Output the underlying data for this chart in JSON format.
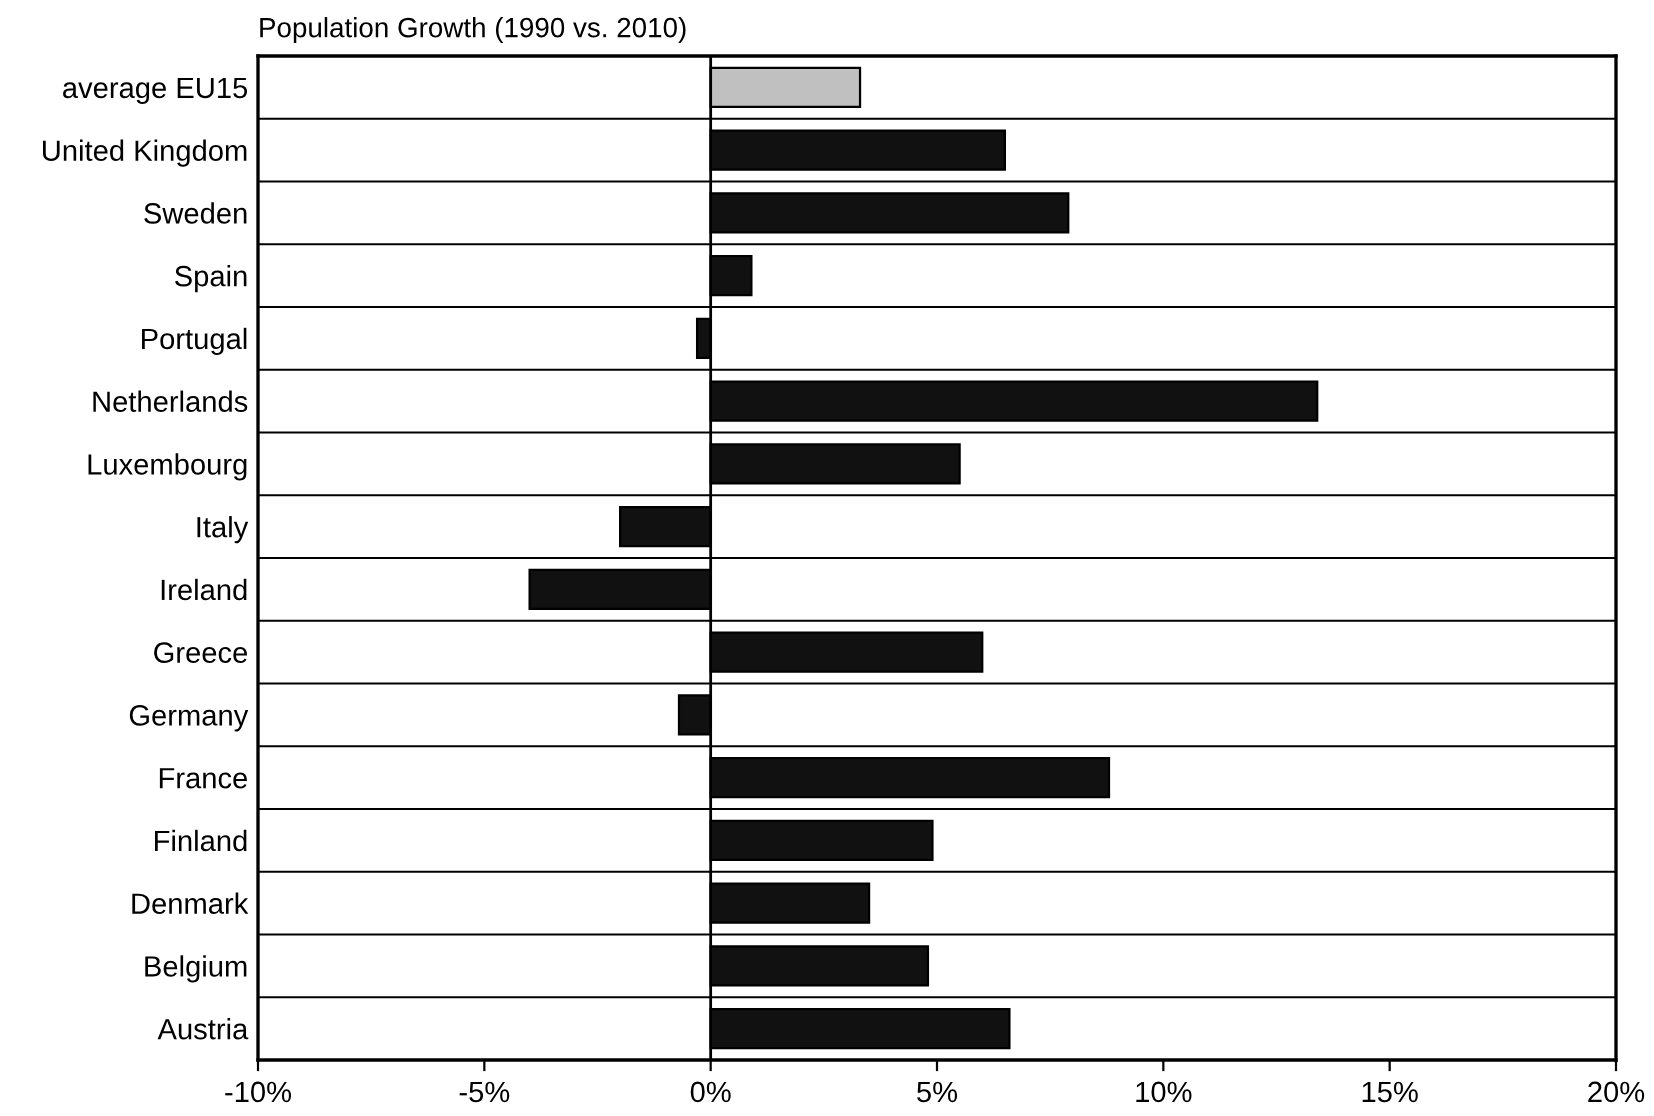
{
  "chart_data": {
    "type": "bar",
    "orientation": "horizontal",
    "title": "Population Growth (1990 vs. 2010)",
    "categories": [
      "average EU15",
      "United Kingdom",
      "Sweden",
      "Spain",
      "Portugal",
      "Netherlands",
      "Luxembourg",
      "Italy",
      "Ireland",
      "Greece",
      "Germany",
      "France",
      "Finland",
      "Denmark",
      "Belgium",
      "Austria"
    ],
    "values": [
      3.3,
      6.5,
      7.9,
      0.9,
      -0.3,
      13.4,
      5.5,
      -2.0,
      -4.0,
      6.0,
      -0.7,
      8.8,
      4.9,
      3.5,
      4.8,
      6.6
    ],
    "colors": [
      "#c0c0c0",
      "#111111",
      "#111111",
      "#111111",
      "#111111",
      "#111111",
      "#111111",
      "#111111",
      "#111111",
      "#111111",
      "#111111",
      "#111111",
      "#111111",
      "#111111",
      "#111111",
      "#111111"
    ],
    "xlim": [
      -10,
      20
    ],
    "xticks": [
      {
        "value": -10,
        "label": "-10%"
      },
      {
        "value": -5,
        "label": "-5%"
      },
      {
        "value": 0,
        "label": "0%"
      },
      {
        "value": 5,
        "label": "5%"
      },
      {
        "value": 10,
        "label": "10%"
      },
      {
        "value": 15,
        "label": "15%"
      },
      {
        "value": 20,
        "label": "20%"
      }
    ],
    "grid": "y",
    "legend": false
  }
}
